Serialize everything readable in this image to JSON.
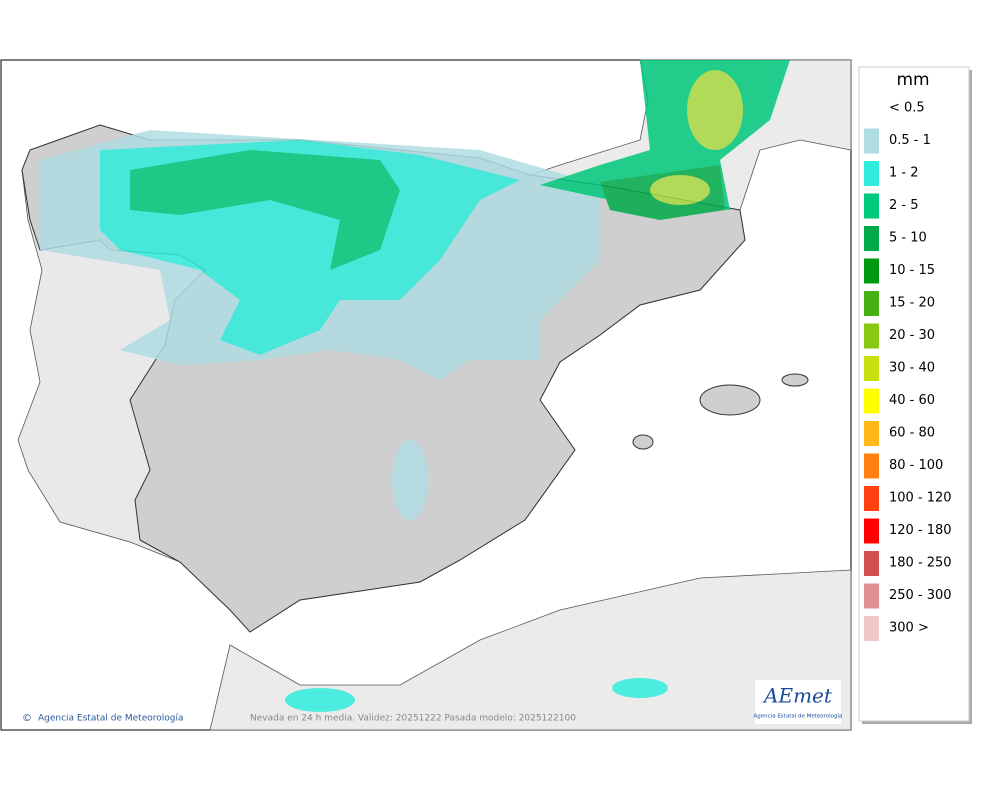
{
  "map": {
    "footer": {
      "copyright_symbol": "©",
      "agency": "Agencia Estatal de Meteorología",
      "caption": "Nevada en 24 h media. Validez: 20251222 Pasada modelo: 2025122100"
    },
    "logo": {
      "name": "AEmet",
      "subtitle": "Agencia Estatal de Meteorología"
    },
    "legend": {
      "unit": "mm",
      "items": [
        {
          "label": "< 0.5"
        },
        {
          "label": "0.5 - 1",
          "color": "#b0dde3"
        },
        {
          "label": "1 - 2",
          "color": "#30ecdc"
        },
        {
          "label": "2 - 5",
          "color": "#00c87c"
        },
        {
          "label": "5 - 10",
          "color": "#00aa48"
        },
        {
          "label": "10 - 15",
          "color": "#009a10"
        },
        {
          "label": "15 - 20",
          "color": "#44b012"
        },
        {
          "label": "20 - 30",
          "color": "#88c810"
        },
        {
          "label": "30 - 40",
          "color": "#c8e010"
        },
        {
          "label": "40 - 60",
          "color": "#ffff00"
        },
        {
          "label": "60 - 80",
          "color": "#ffb818"
        },
        {
          "label": "80 - 100",
          "color": "#ff8010"
        },
        {
          "label": "100 - 120",
          "color": "#ff4010"
        },
        {
          "label": "120 - 180",
          "color": "#ff0000"
        },
        {
          "label": "180 - 250",
          "color": "#d05050"
        },
        {
          "label": "250 - 300",
          "color": "#e09090"
        },
        {
          "label": "300 >",
          "color": "#f0c8c8"
        }
      ]
    }
  }
}
